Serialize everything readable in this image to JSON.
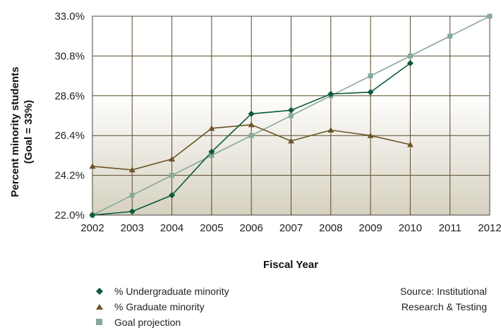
{
  "chart_data": {
    "type": "line",
    "ylabel_line1": "Percent minority students",
    "ylabel_line2": "(Goal = 33%)",
    "xlabel": "Fiscal Year",
    "x": [
      "2002",
      "2003",
      "2004",
      "2005",
      "2006",
      "2007",
      "2008",
      "2009",
      "2010",
      "2011",
      "2012"
    ],
    "ylim": [
      22.0,
      33.0
    ],
    "yticks": [
      22.0,
      24.2,
      26.4,
      28.6,
      30.8,
      33.0
    ],
    "ytick_labels": [
      "22.0%",
      "24.2%",
      "26.4%",
      "28.6%",
      "30.8%",
      "33.0%"
    ],
    "grid": true,
    "legend_position": "bottom-left",
    "series": [
      {
        "name": "% Undergraduate minority",
        "marker": "diamond",
        "color": "#0b5a3a",
        "values": [
          22.0,
          22.2,
          23.1,
          25.5,
          27.6,
          27.8,
          28.7,
          28.8,
          30.4,
          null,
          null
        ]
      },
      {
        "name": "% Graduate minority",
        "marker": "triangle",
        "color": "#6b5428",
        "values": [
          24.7,
          24.5,
          25.1,
          26.8,
          27.0,
          26.1,
          26.7,
          26.4,
          25.9,
          null,
          null
        ]
      },
      {
        "name": "Goal projection",
        "marker": "square",
        "color": "#86aa9a",
        "values": [
          22.0,
          23.1,
          24.2,
          25.3,
          26.4,
          27.5,
          28.6,
          29.7,
          30.8,
          31.9,
          33.0
        ]
      }
    ]
  },
  "source": {
    "line1": "Source: Institutional",
    "line2": "Research & Testing"
  }
}
